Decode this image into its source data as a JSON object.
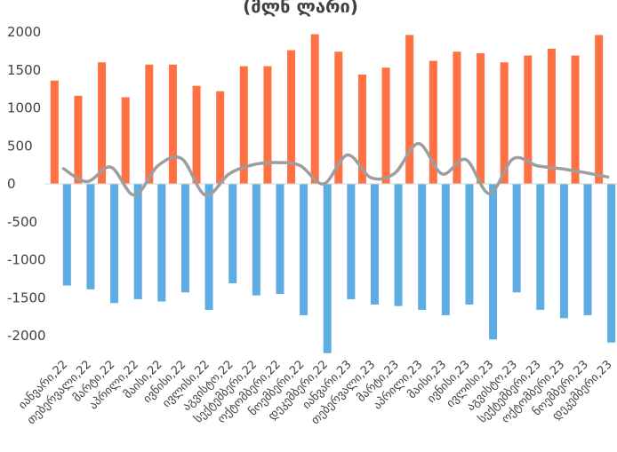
{
  "chart_data": {
    "type": "bar",
    "title": "(მლნ ლარი)",
    "categories": [
      "იანვარი,22",
      "თებერვალი,22",
      "მარტი,22",
      "აპრილი,22",
      "მაისი,22",
      "ივნისი,22",
      "ივლისი,22",
      "აგვისტო,22",
      "სექტემბერი,22",
      "ოქტომბერი,22",
      "ნოემბერი,22",
      "დეკემბერი,22",
      "იანვარი,23",
      "თებერვალი,23",
      "მარტი,23",
      "აპრილი,23",
      "მაისი,23",
      "ივნისი,23",
      "ივლისი,23",
      "აგვისტო,23",
      "სექტემბერი,23",
      "ოქტომბერი,23",
      "ნოემბერი,23",
      "დეკემბერი,23"
    ],
    "series": [
      {
        "kind": "bar",
        "color": "#FF7043",
        "values": [
          1360,
          1160,
          1600,
          1140,
          1570,
          1570,
          1290,
          1220,
          1550,
          1550,
          1760,
          1970,
          1740,
          1440,
          1530,
          1960,
          1620,
          1740,
          1720,
          1600,
          1690,
          1780,
          1690,
          1960
        ]
      },
      {
        "kind": "bar",
        "color": "#5DADE2",
        "values": [
          -1340,
          -1390,
          -1570,
          -1520,
          -1550,
          -1430,
          -1660,
          -1310,
          -1470,
          -1450,
          -1730,
          -2230,
          -1520,
          -1590,
          -1610,
          -1660,
          -1730,
          -1590,
          -2050,
          -1430,
          -1660,
          -1770,
          -1730,
          -2090
        ]
      },
      {
        "kind": "line",
        "color": "#9E9E9E",
        "values": [
          200,
          30,
          220,
          -150,
          240,
          330,
          -150,
          130,
          250,
          280,
          240,
          0,
          380,
          80,
          140,
          530,
          130,
          320,
          -130,
          330,
          240,
          200,
          150,
          90
        ]
      }
    ],
    "ylim": [
      -2200,
      2000
    ],
    "yticks": [
      2000,
      1500,
      1000,
      500,
      0,
      -500,
      -1000,
      -1500,
      -2000
    ],
    "ytick_labels": [
      "2000",
      "1500",
      "1000",
      "500",
      "0",
      "-500",
      "-1000",
      "-1500",
      "-2000"
    ],
    "grid": false,
    "legend": "none"
  }
}
